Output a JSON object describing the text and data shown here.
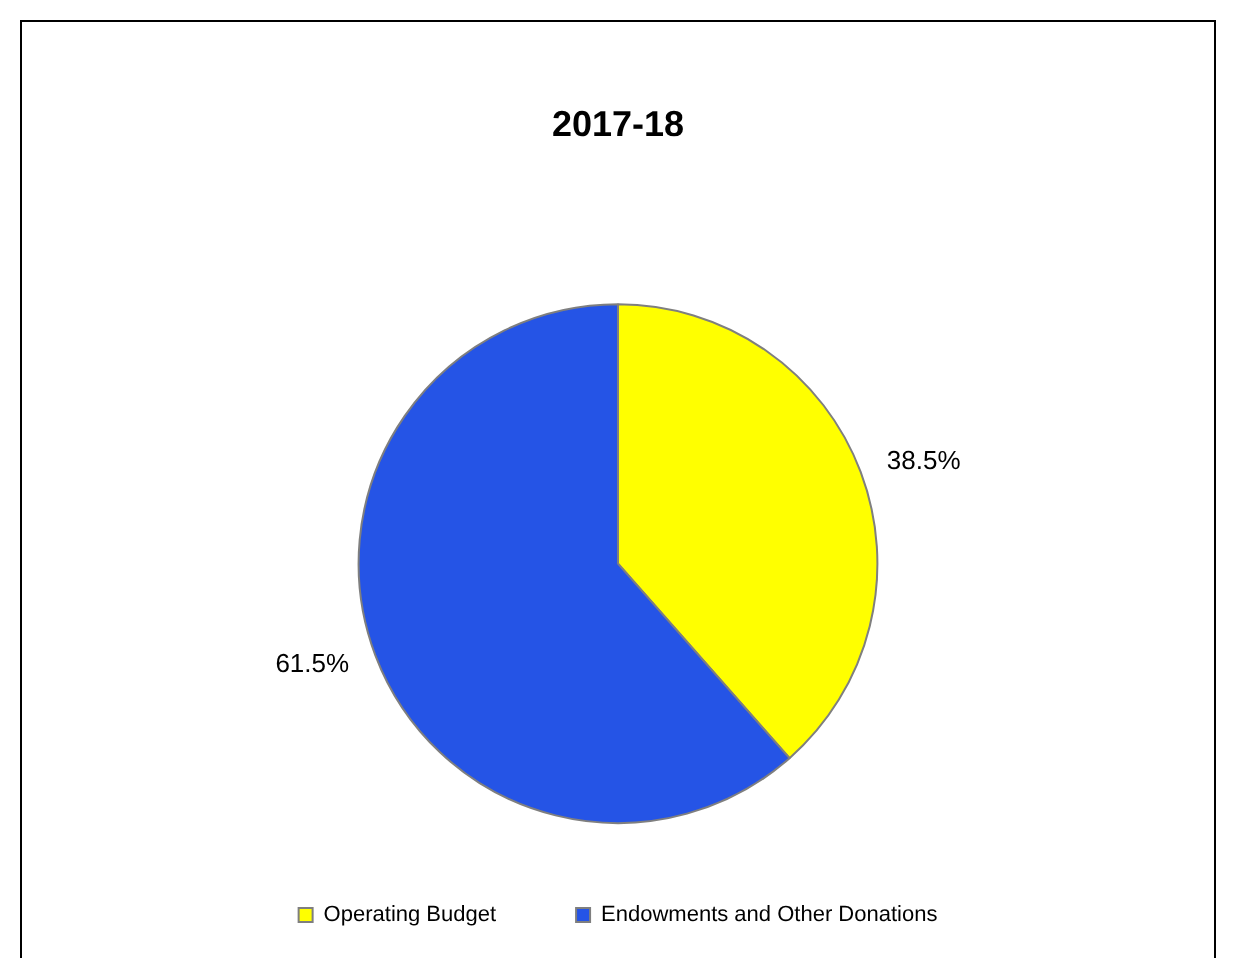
{
  "chart_data": {
    "type": "pie",
    "title": "2017-18",
    "categories": [
      "Operating Budget",
      "Endowments and Other Donations"
    ],
    "values": [
      38.5,
      61.5
    ],
    "colors": [
      "#ffff00",
      "#2554e6"
    ],
    "value_labels": [
      "38.5%",
      "61.5%"
    ],
    "legend": "bottom"
  }
}
